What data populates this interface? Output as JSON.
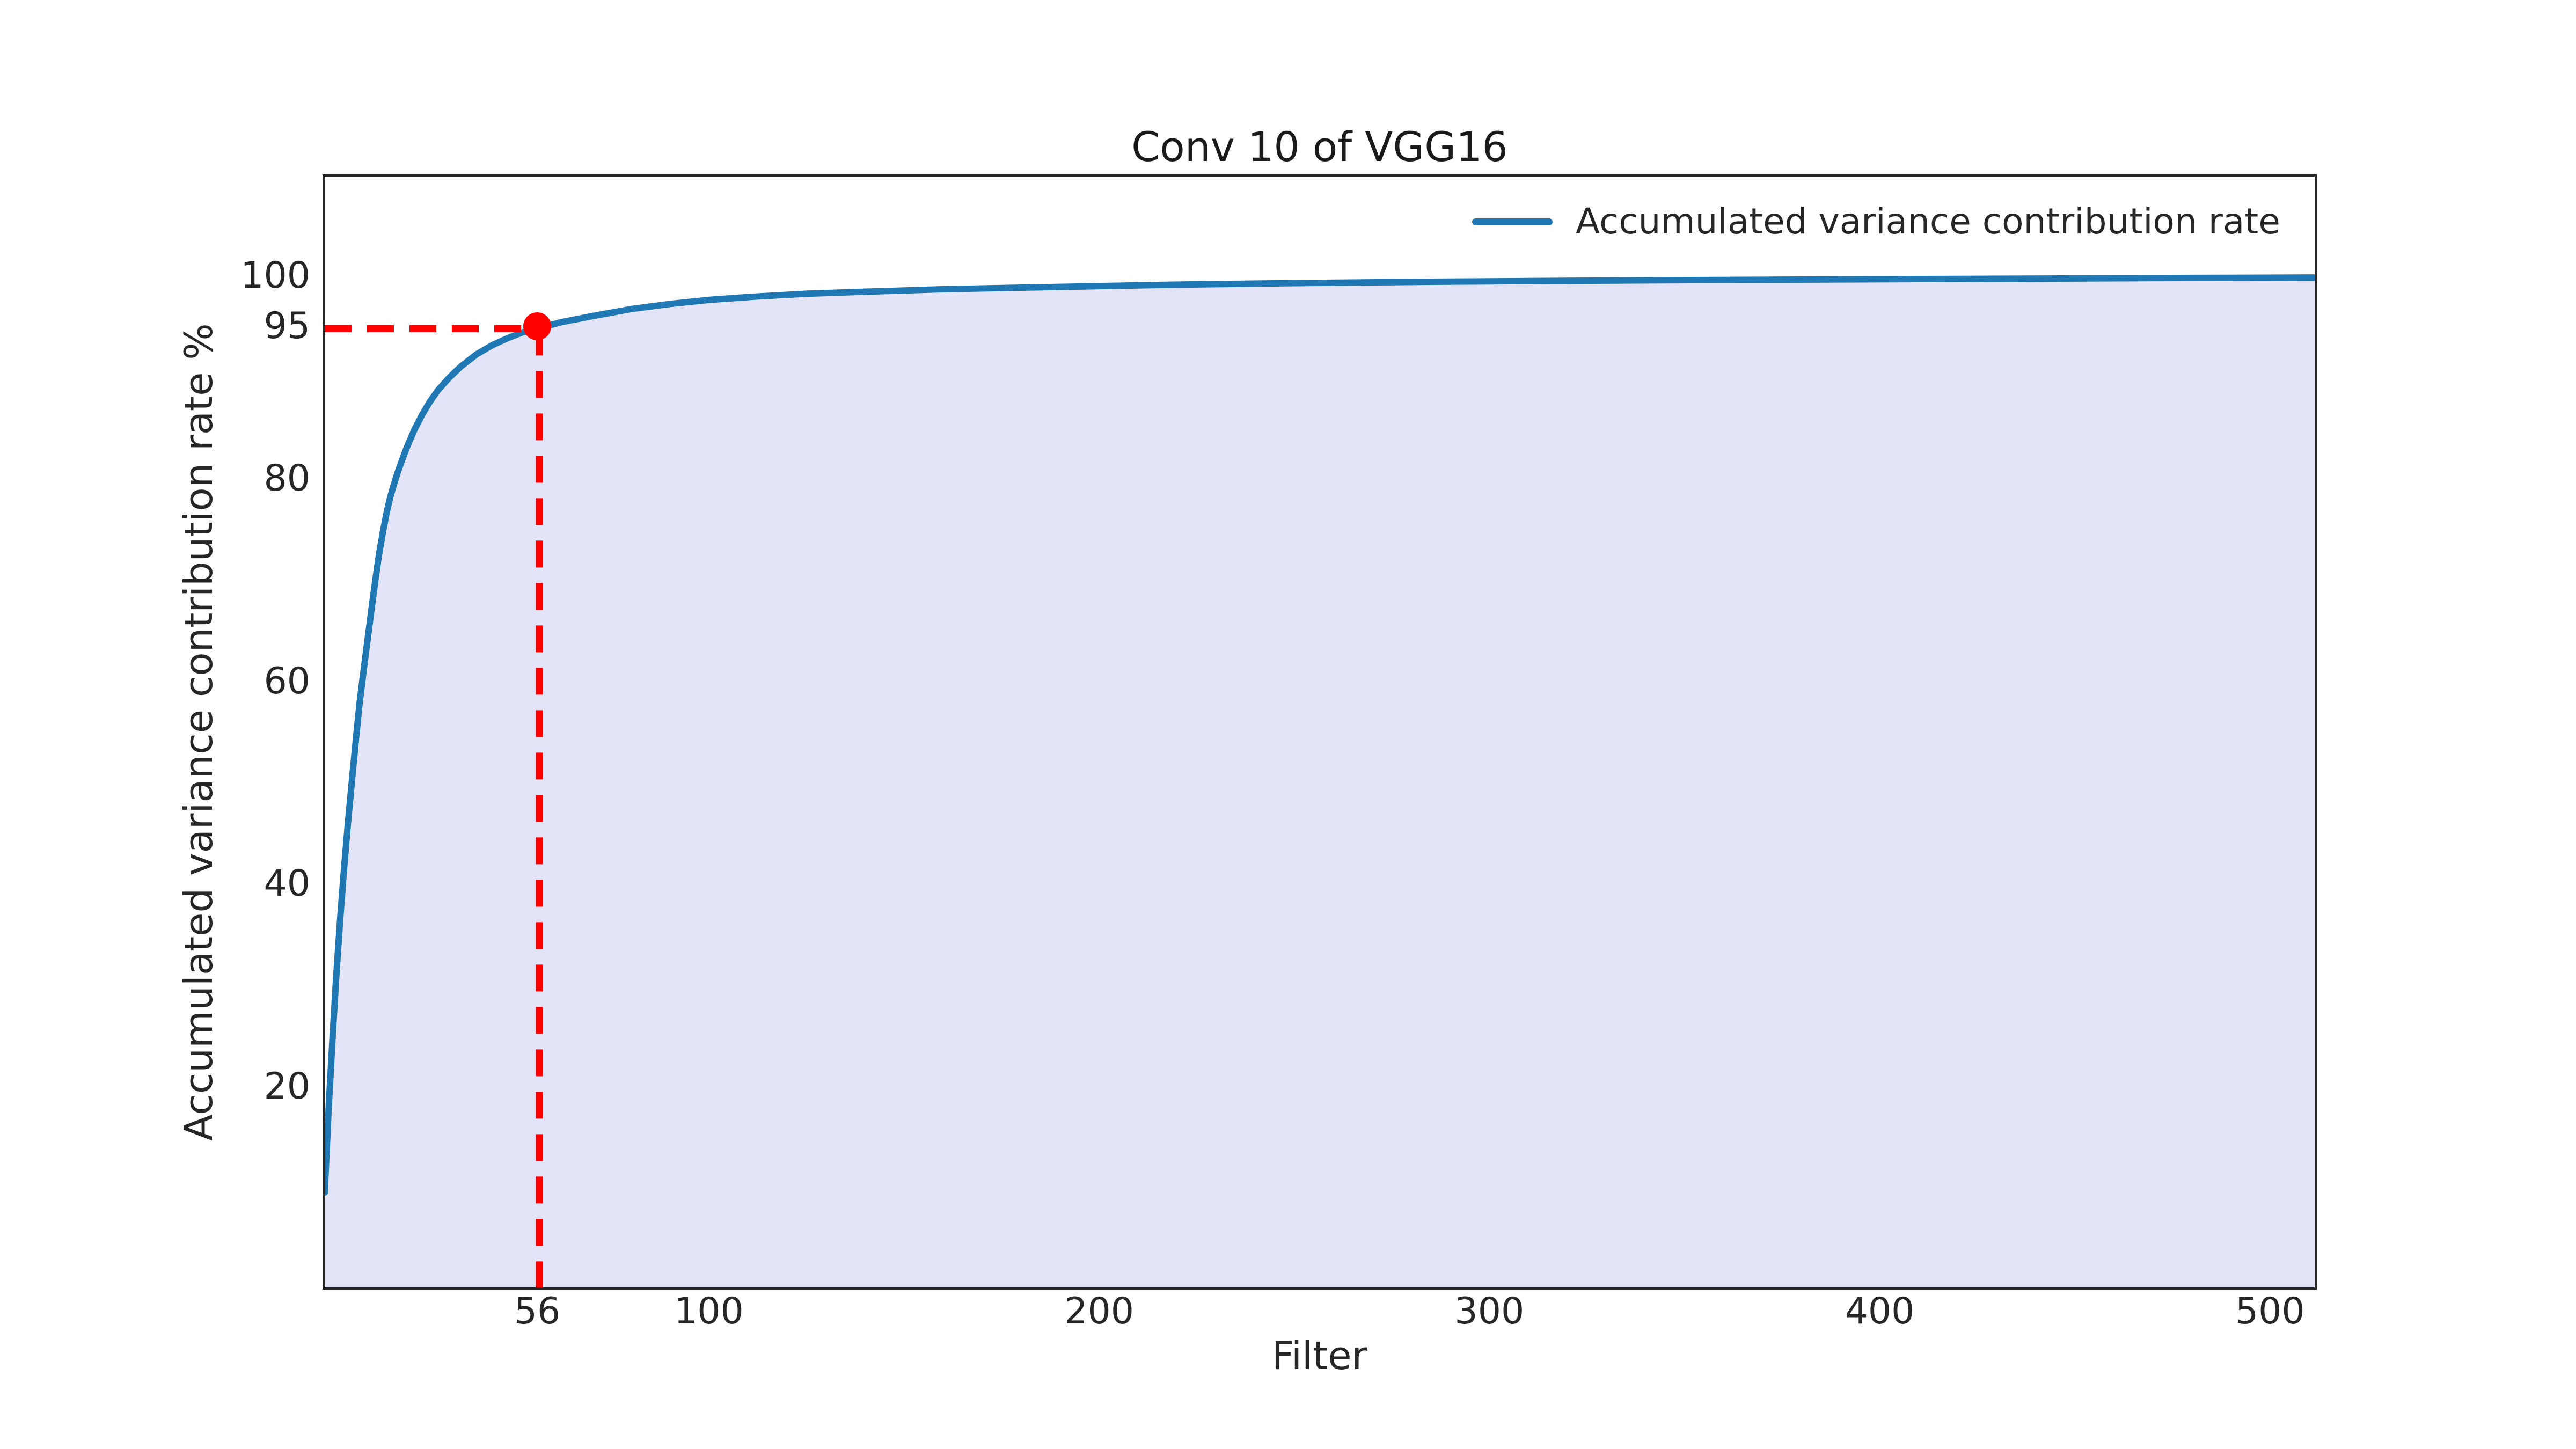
{
  "chart_data": {
    "type": "area",
    "title": "Conv 10 of VGG16",
    "xlabel": "Filter",
    "ylabel": "Accumulated variance contribution rate %",
    "xlim": [
      1,
      512
    ],
    "ylim": [
      0,
      110
    ],
    "xticks": [
      56,
      100,
      200,
      300,
      400,
      500
    ],
    "yticks": [
      20,
      40,
      60,
      80,
      95,
      100
    ],
    "grid": false,
    "legend_position": "upper right",
    "legend": [
      {
        "label": "Accumulated variance contribution rate",
        "color": "#1f77b4"
      }
    ],
    "series": [
      {
        "name": "Accumulated variance contribution rate",
        "line_color": "#1f77b4",
        "fill_color": "#e4e4f9",
        "points": [
          [
            1,
            9.4
          ],
          [
            2,
            17.6
          ],
          [
            3,
            24.6
          ],
          [
            4,
            31.0
          ],
          [
            5,
            36.6
          ],
          [
            6,
            41.6
          ],
          [
            7,
            46.1
          ],
          [
            8,
            50.2
          ],
          [
            9,
            54.2
          ],
          [
            10,
            58.0
          ],
          [
            11,
            61.1
          ],
          [
            12,
            64.1
          ],
          [
            13,
            67.1
          ],
          [
            14,
            70.0
          ],
          [
            15,
            72.7
          ],
          [
            16,
            74.9
          ],
          [
            17,
            76.9
          ],
          [
            18,
            78.5
          ],
          [
            19,
            79.8
          ],
          [
            20,
            81.0
          ],
          [
            22,
            83.1
          ],
          [
            24,
            84.9
          ],
          [
            26,
            86.4
          ],
          [
            28,
            87.7
          ],
          [
            30,
            88.8
          ],
          [
            33,
            90.1
          ],
          [
            36,
            91.2
          ],
          [
            40,
            92.4
          ],
          [
            44,
            93.3
          ],
          [
            48,
            94.0
          ],
          [
            52,
            94.6
          ],
          [
            56,
            95.0
          ],
          [
            62,
            95.6
          ],
          [
            70,
            96.2
          ],
          [
            80,
            96.9
          ],
          [
            90,
            97.4
          ],
          [
            100,
            97.8
          ],
          [
            111,
            98.1
          ],
          [
            125,
            98.4
          ],
          [
            140,
            98.6
          ],
          [
            160,
            98.85
          ],
          [
            180,
            99.0
          ],
          [
            200,
            99.15
          ],
          [
            220,
            99.3
          ],
          [
            250,
            99.45
          ],
          [
            290,
            99.6
          ],
          [
            330,
            99.7
          ],
          [
            370,
            99.78
          ],
          [
            410,
            99.85
          ],
          [
            450,
            99.91
          ],
          [
            480,
            99.96
          ],
          [
            512,
            100.0
          ]
        ]
      }
    ],
    "annotation": {
      "marked_point": {
        "x": 56,
        "y": 95
      },
      "marker_color": "#ff0000",
      "crosshair_style": "dashed"
    },
    "colors": {
      "line": "#1f77b4",
      "fill": "#e4e4f9",
      "crosshair": "#ff0000",
      "text": "#262626",
      "spine": "#262626"
    }
  }
}
